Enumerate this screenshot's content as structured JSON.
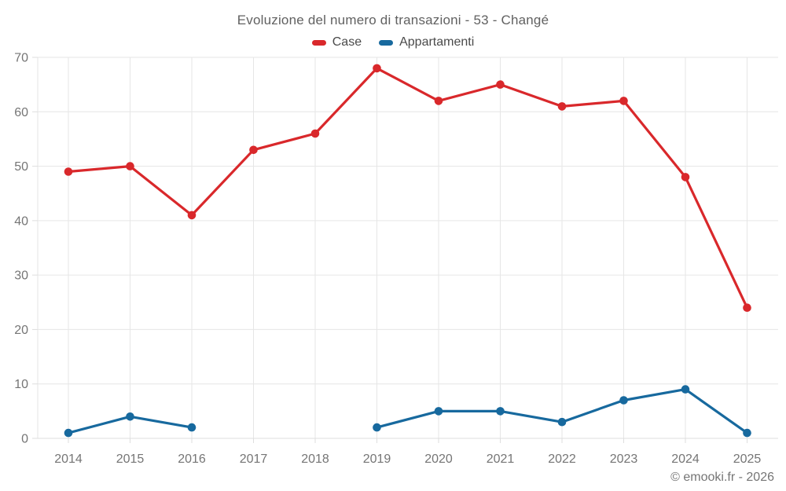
{
  "footer": {
    "copyright": "© emooki.fr - 2026"
  },
  "chart_data": {
    "type": "line",
    "title": "Evoluzione del numero di transazioni - 53 - Changé",
    "x": [
      "2014",
      "2015",
      "2016",
      "2017",
      "2018",
      "2019",
      "2020",
      "2021",
      "2022",
      "2023",
      "2024",
      "2025"
    ],
    "series": [
      {
        "name": "Case",
        "color": "#d9282b",
        "values": [
          49,
          50,
          41,
          53,
          56,
          68,
          62,
          65,
          61,
          62,
          48,
          24
        ]
      },
      {
        "name": "Appartamenti",
        "color": "#17699e",
        "values": [
          1,
          4,
          2,
          null,
          null,
          2,
          5,
          5,
          3,
          7,
          9,
          1
        ]
      }
    ],
    "xlabel": "",
    "ylabel": "",
    "ylim": [
      0,
      70
    ],
    "ytick_step": 10,
    "grid": true,
    "legend_position": "top",
    "marker": "circle"
  }
}
